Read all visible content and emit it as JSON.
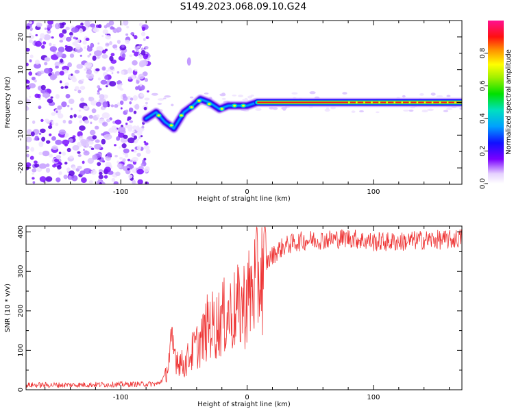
{
  "title": "S149.2023.068.09.10.G24",
  "chart_data": [
    {
      "type": "heatmap",
      "xlabel": "Height of straight line (km)",
      "ylabel": "Frequency (Hz)",
      "xlim": [
        -175,
        170
      ],
      "ylim": [
        -25,
        25
      ],
      "x_ticks": [
        -100,
        0,
        100
      ],
      "y_ticks": [
        -20,
        -10,
        0,
        10,
        20
      ],
      "colorbar": {
        "label": "Normalized spectral amplitude",
        "range": [
          0,
          1
        ],
        "ticks": [
          0.0,
          0.2,
          0.4,
          0.6,
          0.8
        ],
        "colormap": "rainbow"
      },
      "noise_region_x": [
        -175,
        -78
      ],
      "ridge": [
        {
          "x": -80,
          "y": -5
        },
        {
          "x": -72,
          "y": -3
        },
        {
          "x": -65,
          "y": -6
        },
        {
          "x": -58,
          "y": -8
        },
        {
          "x": -50,
          "y": -3
        },
        {
          "x": -43,
          "y": -1
        },
        {
          "x": -37,
          "y": 1
        },
        {
          "x": -30,
          "y": 0
        },
        {
          "x": -22,
          "y": -2
        },
        {
          "x": -15,
          "y": -1
        },
        {
          "x": -8,
          "y": -1
        },
        {
          "x": 0,
          "y": -1
        },
        {
          "x": 8,
          "y": 0
        },
        {
          "x": 60,
          "y": 0
        },
        {
          "x": 120,
          "y": 0
        },
        {
          "x": 170,
          "y": 0
        }
      ],
      "carrier_line": {
        "x_start": 8,
        "x_end": 170,
        "y": 0
      }
    },
    {
      "type": "line",
      "xlabel": "Height of straight line (km)",
      "ylabel": "SNR (10 * v/v)",
      "xlim": [
        -175,
        170
      ],
      "ylim": [
        0,
        415
      ],
      "x_ticks": [
        -100,
        0,
        100
      ],
      "y_ticks": [
        0,
        100,
        200,
        300,
        400
      ],
      "series": [
        {
          "color": "#ee3333",
          "values": [
            [
              -175,
              12
            ],
            [
              -150,
              12
            ],
            [
              -120,
              13
            ],
            [
              -90,
              14
            ],
            [
              -70,
              15
            ],
            [
              -64,
              40
            ],
            [
              -60,
              110
            ],
            [
              -55,
              80
            ],
            [
              -50,
              60
            ],
            [
              -45,
              90
            ],
            [
              -40,
              110
            ],
            [
              -35,
              130
            ],
            [
              -30,
              170
            ],
            [
              -25,
              160
            ],
            [
              -20,
              180
            ],
            [
              -15,
              190
            ],
            [
              -10,
              200
            ],
            [
              -5,
              210
            ],
            [
              0,
              230
            ],
            [
              5,
              260
            ],
            [
              10,
              290
            ],
            [
              15,
              320
            ],
            [
              20,
              340
            ],
            [
              25,
              355
            ],
            [
              30,
              365
            ],
            [
              40,
              375
            ],
            [
              50,
              380
            ],
            [
              60,
              380
            ],
            [
              80,
              385
            ],
            [
              90,
              380
            ],
            [
              100,
              375
            ],
            [
              120,
              375
            ],
            [
              140,
              380
            ],
            [
              160,
              380
            ],
            [
              170,
              385
            ]
          ]
        }
      ]
    }
  ]
}
